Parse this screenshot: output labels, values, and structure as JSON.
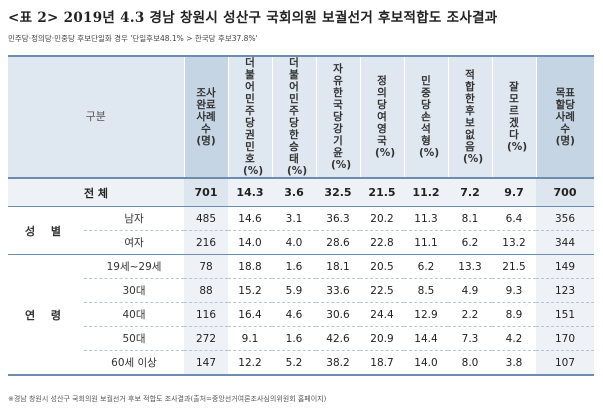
{
  "title": "<표 2> 2019년 4.3 경남 창원시 성산구 국회의원 보궐선거 후보적합도 조사결과",
  "subtitle": "민주당·정의당·민중당 후보단일화 경우 '단일후보48.1% > 한국당 후보37.8%'",
  "header": {
    "gubun": "구분",
    "columns": [
      "조사완료사례수(명)",
      "더불어민주당권민호(%)",
      "더불어민주당한승태(%)",
      "자유한국당강기윤(%)",
      "정의당여영국(%)",
      "민중당손석형(%)",
      "적합한후보없음(%)",
      "잘모르겠다(%)",
      "목표할당사례수(명)"
    ]
  },
  "total": {
    "label": "전 체",
    "values": [
      "701",
      "14.3",
      "3.6",
      "32.5",
      "21.5",
      "11.2",
      "7.2",
      "9.7",
      "700"
    ]
  },
  "groups": [
    {
      "label": "성 별",
      "rows": [
        {
          "label": "남자",
          "values": [
            "485",
            "14.6",
            "3.1",
            "36.3",
            "20.2",
            "11.3",
            "8.1",
            "6.4",
            "356"
          ]
        },
        {
          "label": "여자",
          "values": [
            "216",
            "14.0",
            "4.0",
            "28.6",
            "22.8",
            "11.1",
            "6.2",
            "13.2",
            "344"
          ]
        }
      ]
    },
    {
      "label": "연 령",
      "rows": [
        {
          "label": "19세~29세",
          "values": [
            "78",
            "18.8",
            "1.6",
            "18.1",
            "20.5",
            "6.2",
            "13.3",
            "21.5",
            "149"
          ]
        },
        {
          "label": "30대",
          "values": [
            "88",
            "15.2",
            "5.9",
            "33.6",
            "22.5",
            "8.5",
            "4.9",
            "9.3",
            "123"
          ]
        },
        {
          "label": "40대",
          "values": [
            "116",
            "16.4",
            "4.6",
            "30.6",
            "24.4",
            "12.9",
            "2.2",
            "8.9",
            "151"
          ]
        },
        {
          "label": "50대",
          "values": [
            "272",
            "9.1",
            "1.6",
            "42.6",
            "20.9",
            "14.4",
            "7.3",
            "4.2",
            "170"
          ]
        },
        {
          "label": "60세 이상",
          "values": [
            "147",
            "12.2",
            "5.2",
            "38.2",
            "18.7",
            "14.0",
            "8.0",
            "3.8",
            "107"
          ]
        }
      ]
    }
  ],
  "footnote": "※경남 창원시 성산구 국회의원 보궐선거 후보 적합도 조사결과(출처=중앙선거여론조사심의위원회 홈페이지)"
}
